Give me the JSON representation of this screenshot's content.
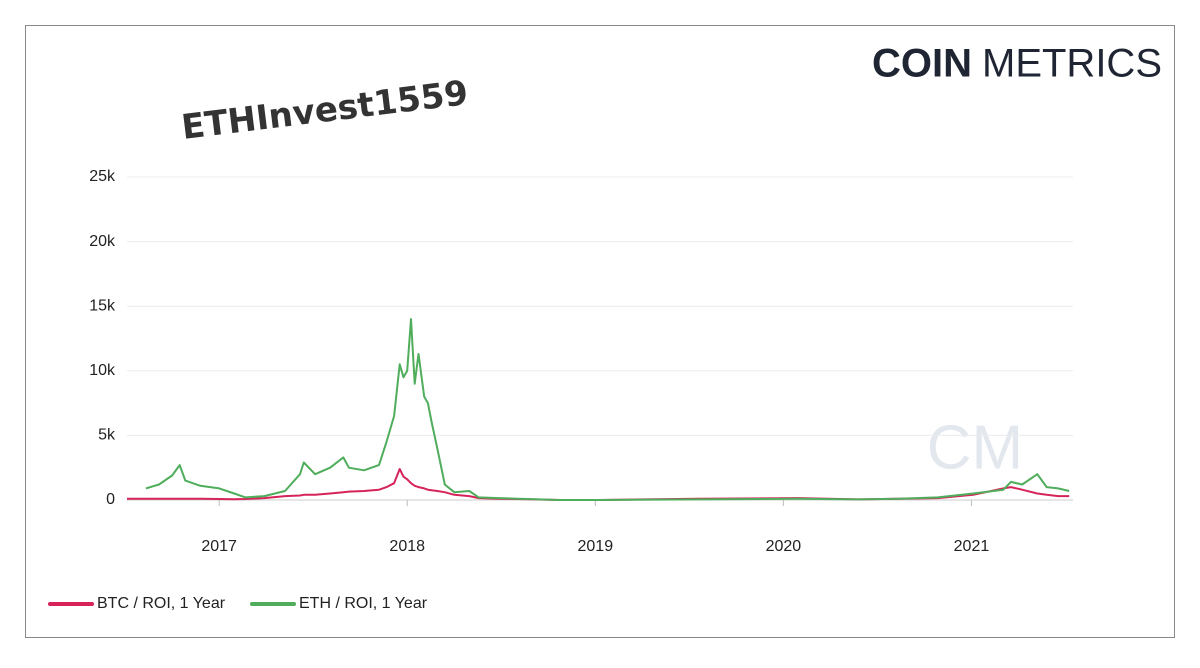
{
  "chart_data": {
    "type": "line",
    "logo": [
      "COIN",
      "METRICS"
    ],
    "annotation": "ETHInvest1559",
    "watermark": "CM",
    "x": [
      2016.51,
      2016.61,
      2016.68,
      2016.75,
      2016.79,
      2016.82,
      2016.9,
      2017.0,
      2017.08,
      2017.14,
      2017.24,
      2017.35,
      2017.43,
      2017.45,
      2017.51,
      2017.59,
      2017.66,
      2017.69,
      2017.77,
      2017.85,
      2017.89,
      2017.93,
      2017.96,
      2017.98,
      2018.0,
      2018.02,
      2018.04,
      2018.06,
      2018.09,
      2018.11,
      2018.13,
      2018.16,
      2018.2,
      2018.25,
      2018.33,
      2018.38,
      2018.49,
      2018.59,
      2018.81,
      2019.02,
      2019.55,
      2020.08,
      2020.4,
      2020.61,
      2020.82,
      2021.01,
      2021.17,
      2021.21,
      2021.27,
      2021.35,
      2021.4,
      2021.46,
      2021.52
    ],
    "series": [
      {
        "name": "BTC / ROI, 1 Year",
        "color": "#d6245a",
        "values": [
          100,
          100,
          100,
          100,
          100,
          100,
          100,
          80,
          60,
          80,
          150,
          300,
          350,
          400,
          400,
          500,
          600,
          650,
          700,
          800,
          1000,
          1300,
          2400,
          1800,
          1600,
          1300,
          1100,
          1000,
          900,
          800,
          750,
          700,
          600,
          400,
          300,
          150,
          100,
          80,
          0,
          0,
          100,
          150,
          50,
          100,
          150,
          400,
          900,
          1000,
          800,
          500,
          400,
          300,
          300
        ]
      },
      {
        "name": "ETH / ROI, 1 Year",
        "color": "#4fad5b",
        "values": [
          null,
          900,
          1200,
          1900,
          2700,
          1500,
          1100,
          900,
          500,
          200,
          300,
          700,
          2000,
          2900,
          2000,
          2500,
          3300,
          2500,
          2300,
          2700,
          4500,
          6500,
          10500,
          9500,
          10000,
          14000,
          9000,
          11300,
          8000,
          7500,
          6000,
          4000,
          1200,
          600,
          700,
          200,
          150,
          100,
          0,
          0,
          50,
          100,
          50,
          100,
          200,
          500,
          800,
          1400,
          1200,
          2000,
          1000,
          900,
          700
        ]
      }
    ],
    "xlim": [
      2016.51,
      2021.54
    ],
    "xticks": [
      2017,
      2018,
      2019,
      2020,
      2021
    ],
    "ylim": [
      0,
      25000
    ],
    "yticks": [
      0,
      {
        "value": 5000,
        "label": "5k"
      },
      {
        "value": 10000,
        "label": "10k"
      },
      {
        "value": 15000,
        "label": "15k"
      },
      {
        "value": 20000,
        "label": "20k"
      },
      {
        "value": 25000,
        "label": "25k"
      }
    ],
    "grid": true
  }
}
